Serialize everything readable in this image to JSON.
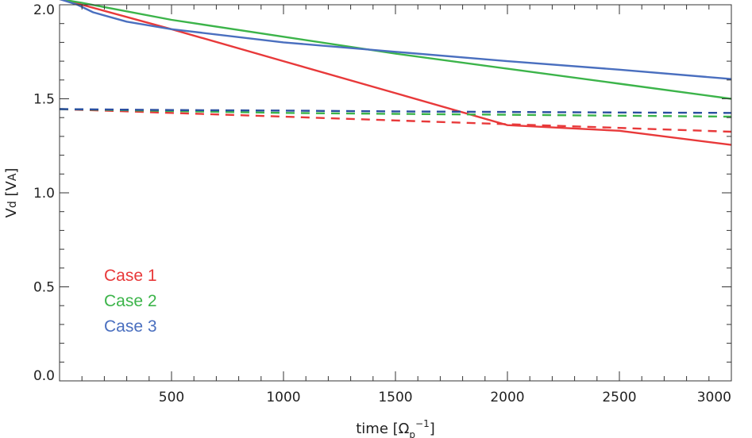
{
  "chart_data": {
    "type": "line",
    "title": "",
    "xlabel": "time [Ωp⁻¹]",
    "xlabel_parts": {
      "prefix": "time  [Ω",
      "sub": "p",
      "sup": "−1",
      "suffix": "]"
    },
    "ylabel": "Vd [VA]",
    "ylabel_parts": {
      "prefix": "V",
      "sub1": "d",
      "mid": " [V",
      "sub2": "A",
      "suffix": "]"
    },
    "xlim": [
      0,
      3000
    ],
    "ylim": [
      0.0,
      2.0
    ],
    "xticks": [
      500,
      1000,
      1500,
      2000,
      2500,
      3000
    ],
    "yticks": [
      0.0,
      0.5,
      1.0,
      1.5,
      2.0
    ],
    "xtick_labels": [
      "500",
      "1000",
      "1500",
      "2000",
      "2500",
      "3000"
    ],
    "ytick_labels": [
      "0.0",
      "0.5",
      "1.0",
      "1.5",
      "2.0"
    ],
    "grid": false,
    "legend_position": "left-middle",
    "series": [
      {
        "name": "Case 1",
        "style": "solid",
        "color": "#e8393a",
        "x": [
          0,
          100,
          500,
          1000,
          1500,
          2000,
          2500,
          3000
        ],
        "y": [
          2.03,
          2.0,
          1.87,
          1.7,
          1.53,
          1.36,
          1.33,
          1.255
        ]
      },
      {
        "name": "Case 2",
        "style": "solid",
        "color": "#3cb44a",
        "x": [
          0,
          100,
          500,
          1000,
          1500,
          2000,
          2500,
          3000
        ],
        "y": [
          2.03,
          2.01,
          1.92,
          1.83,
          1.74,
          1.66,
          1.58,
          1.5
        ]
      },
      {
        "name": "Case 3",
        "style": "solid",
        "color": "#4a6fbf",
        "x": [
          0,
          80,
          150,
          300,
          500,
          1000,
          1500,
          2000,
          2500,
          3000
        ],
        "y": [
          2.03,
          2.0,
          1.96,
          1.91,
          1.87,
          1.8,
          1.75,
          1.7,
          1.655,
          1.605
        ]
      },
      {
        "name": "Case 1",
        "style": "dashed",
        "color": "#e8393a",
        "x": [
          0,
          500,
          1000,
          1500,
          2000,
          2500,
          3000
        ],
        "y": [
          1.445,
          1.425,
          1.405,
          1.385,
          1.365,
          1.345,
          1.325
        ]
      },
      {
        "name": "Case 2",
        "style": "dashed",
        "color": "#3cb44a",
        "x": [
          0,
          500,
          1000,
          1500,
          2000,
          2500,
          3000
        ],
        "y": [
          1.445,
          1.435,
          1.425,
          1.42,
          1.415,
          1.41,
          1.405
        ]
      },
      {
        "name": "Case 3",
        "style": "dashed",
        "color": "#2a4f9f",
        "x": [
          0,
          500,
          1000,
          1500,
          2000,
          2500,
          3000
        ],
        "y": [
          1.445,
          1.44,
          1.437,
          1.433,
          1.43,
          1.427,
          1.425
        ]
      }
    ],
    "legend": [
      {
        "label": "Case 1",
        "color": "#e8393a"
      },
      {
        "label": "Case 2",
        "color": "#3cb44a"
      },
      {
        "label": "Case 3",
        "color": "#4a6fbf"
      }
    ]
  }
}
